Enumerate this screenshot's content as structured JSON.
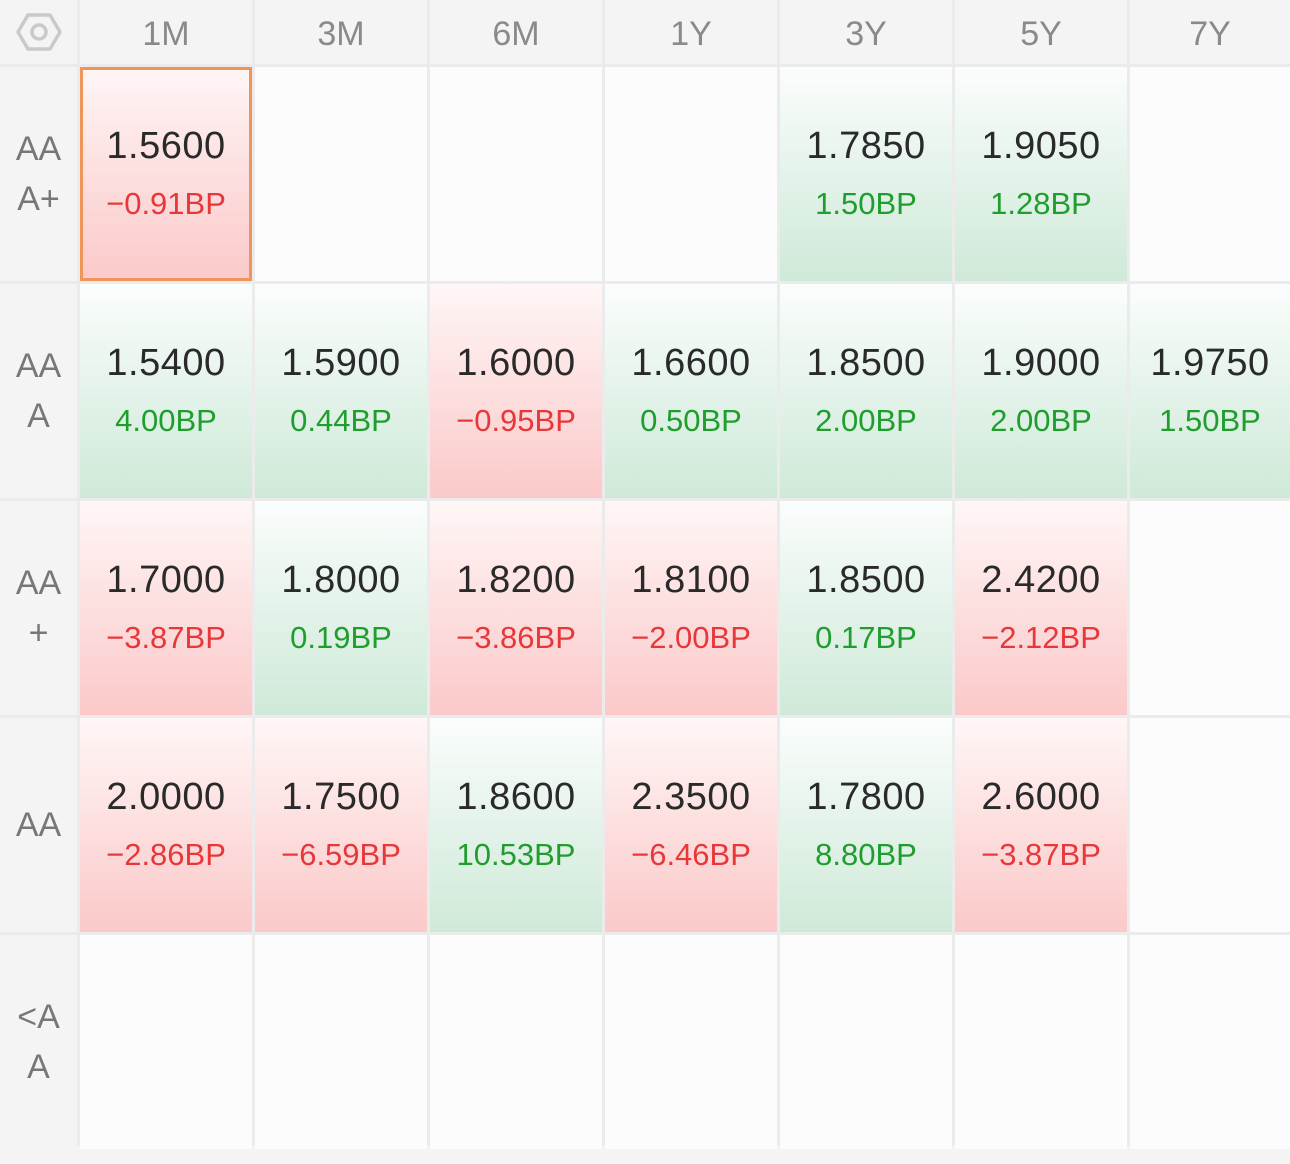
{
  "columns": [
    "1M",
    "3M",
    "6M",
    "1Y",
    "3Y",
    "5Y",
    "7Y"
  ],
  "rows": [
    {
      "label": "AAA+",
      "cells": [
        {
          "rate": "1.5600",
          "change": "−0.91BP",
          "dir": "down",
          "selected": true
        },
        null,
        null,
        null,
        {
          "rate": "1.7850",
          "change": "1.50BP",
          "dir": "up"
        },
        {
          "rate": "1.9050",
          "change": "1.28BP",
          "dir": "up"
        },
        null
      ]
    },
    {
      "label": "AAA",
      "cells": [
        {
          "rate": "1.5400",
          "change": "4.00BP",
          "dir": "up"
        },
        {
          "rate": "1.5900",
          "change": "0.44BP",
          "dir": "up"
        },
        {
          "rate": "1.6000",
          "change": "−0.95BP",
          "dir": "down"
        },
        {
          "rate": "1.6600",
          "change": "0.50BP",
          "dir": "up"
        },
        {
          "rate": "1.8500",
          "change": "2.00BP",
          "dir": "up"
        },
        {
          "rate": "1.9000",
          "change": "2.00BP",
          "dir": "up"
        },
        {
          "rate": "1.9750",
          "change": "1.50BP",
          "dir": "up"
        }
      ]
    },
    {
      "label": "AA+",
      "cells": [
        {
          "rate": "1.7000",
          "change": "−3.87BP",
          "dir": "down"
        },
        {
          "rate": "1.8000",
          "change": "0.19BP",
          "dir": "up"
        },
        {
          "rate": "1.8200",
          "change": "−3.86BP",
          "dir": "down"
        },
        {
          "rate": "1.8100",
          "change": "−2.00BP",
          "dir": "down"
        },
        {
          "rate": "1.8500",
          "change": "0.17BP",
          "dir": "up"
        },
        {
          "rate": "2.4200",
          "change": "−2.12BP",
          "dir": "down"
        },
        null
      ]
    },
    {
      "label": "AA",
      "cells": [
        {
          "rate": "2.0000",
          "change": "−2.86BP",
          "dir": "down"
        },
        {
          "rate": "1.7500",
          "change": "−6.59BP",
          "dir": "down"
        },
        {
          "rate": "1.8600",
          "change": "10.53BP",
          "dir": "up"
        },
        {
          "rate": "2.3500",
          "change": "−6.46BP",
          "dir": "down"
        },
        {
          "rate": "1.7800",
          "change": "8.80BP",
          "dir": "up"
        },
        {
          "rate": "2.6000",
          "change": "−3.87BP",
          "dir": "down"
        },
        null
      ]
    },
    {
      "label": "<AA",
      "cells": [
        null,
        null,
        null,
        null,
        null,
        null,
        null
      ]
    }
  ],
  "icons": {
    "corner": "settings-hexagon-icon"
  },
  "colors": {
    "up_text": "#1f9e2e",
    "down_text": "#e8373a",
    "selected_border": "#f0955a"
  }
}
